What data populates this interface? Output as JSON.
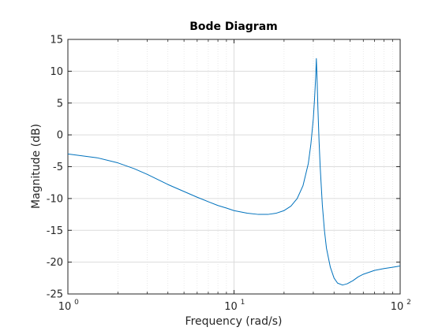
{
  "chart_data": {
    "type": "line",
    "title": "Bode Diagram",
    "xlabel": "Frequency  (rad/s)",
    "ylabel": "Magnitude (dB)",
    "x_scale": "log",
    "xlim": [
      1,
      100
    ],
    "ylim": [
      -25,
      15
    ],
    "x_ticks": [
      1,
      10,
      100
    ],
    "x_tick_labels": [
      {
        "base": "10",
        "exp": "0"
      },
      {
        "base": "10",
        "exp": "1"
      },
      {
        "base": "10",
        "exp": "2"
      }
    ],
    "y_ticks": [
      -25,
      -20,
      -15,
      -10,
      -5,
      0,
      5,
      10,
      15
    ],
    "grid": true,
    "minor_grid": true,
    "line_color": "#0072bd",
    "series": [
      {
        "x": [
          1.0,
          1.5,
          2.0,
          2.5,
          3.0,
          4.0,
          5.0,
          6.0,
          7.0,
          8.0,
          9.0,
          10.0,
          12.0,
          14.0,
          16.0,
          18.0,
          20.0,
          22.0,
          24.0,
          26.0,
          28.0,
          29.0,
          30.0,
          30.5,
          31.0,
          31.3,
          31.6,
          32.0,
          32.5,
          33.0,
          34.0,
          35.0,
          36.0,
          38.0,
          40.0,
          42.0,
          45.0,
          48.0,
          52.0,
          56.0,
          60.0,
          70.0,
          80.0,
          90.0,
          100.0
        ],
        "y": [
          -3.0,
          -3.6,
          -4.4,
          -5.3,
          -6.2,
          -7.8,
          -8.9,
          -9.8,
          -10.5,
          -11.1,
          -11.5,
          -11.9,
          -12.3,
          -12.5,
          -12.5,
          -12.3,
          -11.9,
          -11.2,
          -10.0,
          -8.0,
          -4.5,
          -1.5,
          2.5,
          5.5,
          9.0,
          12.0,
          9.0,
          4.0,
          -1.0,
          -5.0,
          -11.0,
          -15.0,
          -17.8,
          -20.8,
          -22.5,
          -23.3,
          -23.6,
          -23.4,
          -22.9,
          -22.3,
          -21.9,
          -21.3,
          -21.0,
          -20.8,
          -20.6
        ]
      }
    ]
  }
}
